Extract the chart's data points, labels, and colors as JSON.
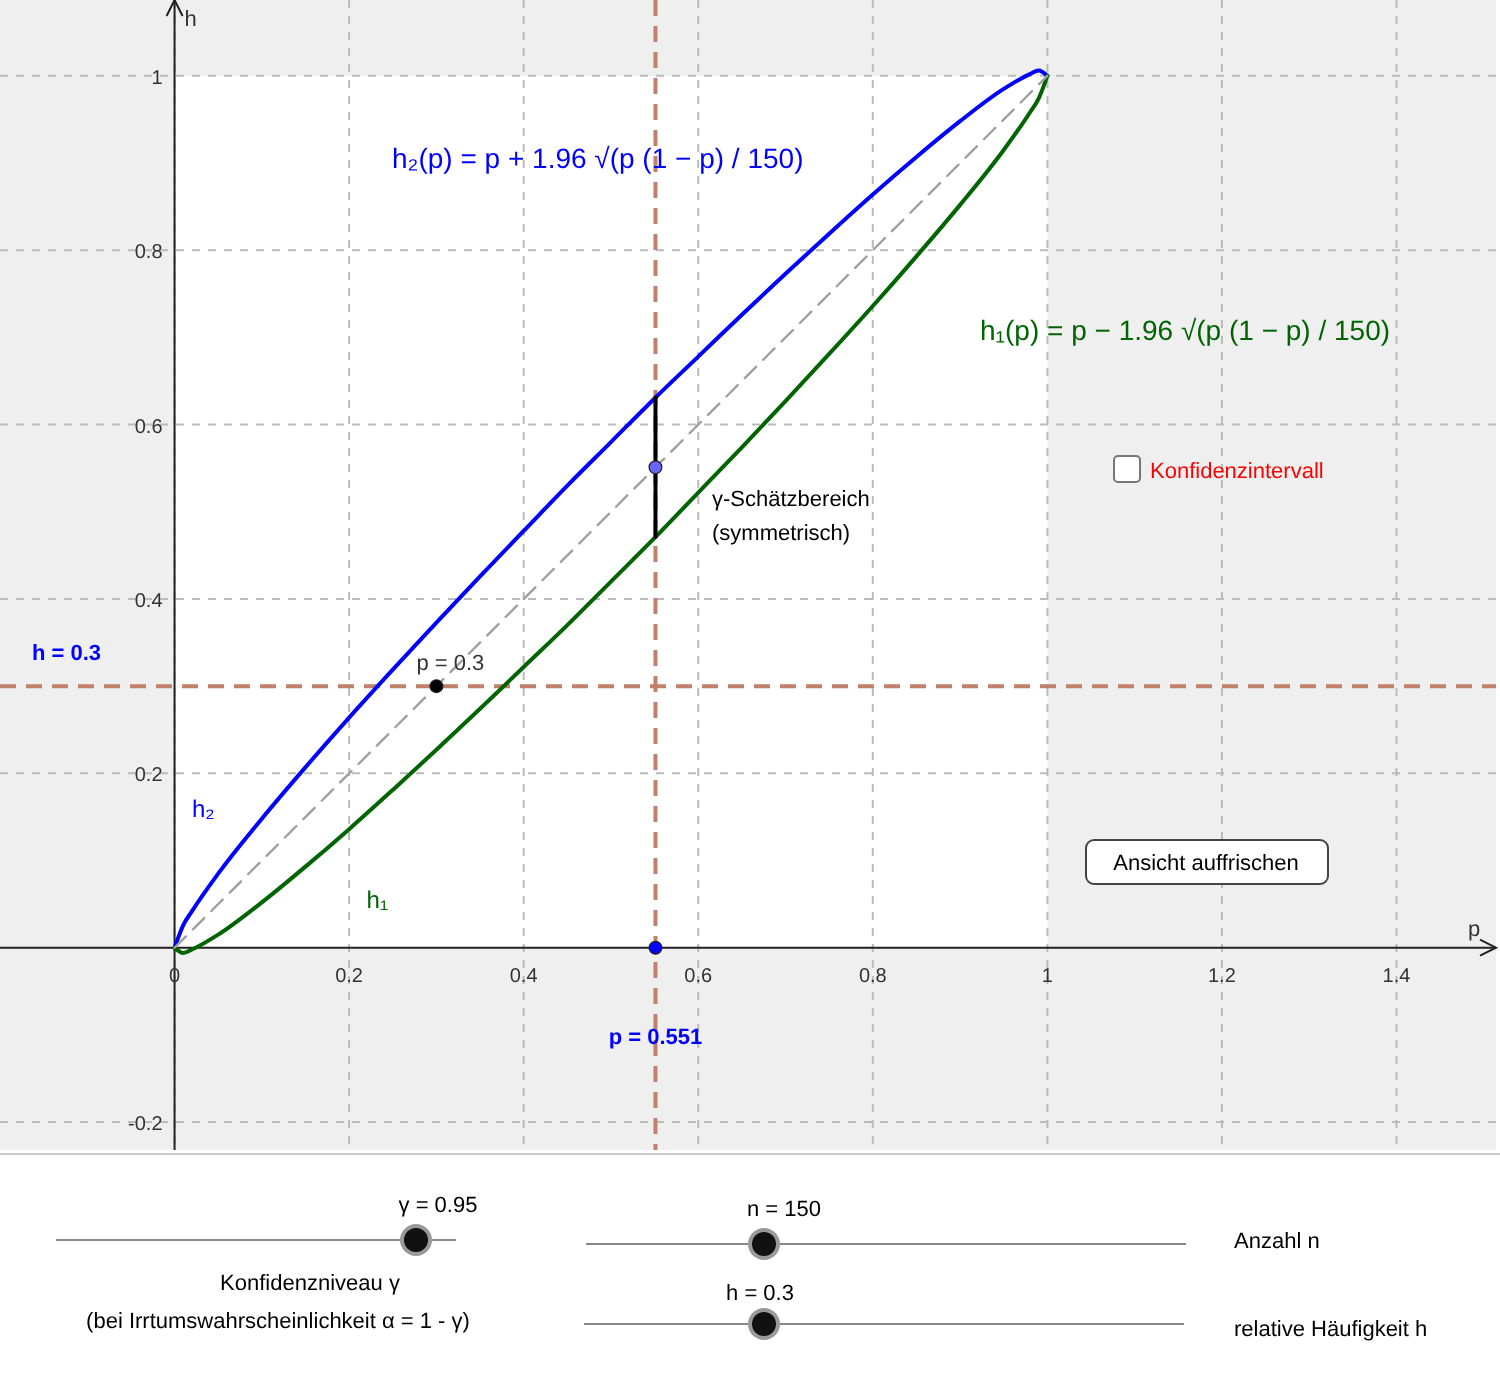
{
  "chart_data": {
    "type": "line",
    "xlabel": "p",
    "ylabel": "h",
    "xlim": [
      -0.2,
      1.514
    ],
    "ylim": [
      -0.232,
      1.087
    ],
    "xticks": [
      0,
      0.2,
      0.4,
      0.6,
      0.8,
      1,
      1.2,
      1.4
    ],
    "yticks": [
      -0.2,
      0.2,
      0.4,
      0.6,
      0.8,
      1
    ],
    "grid": true,
    "series": [
      {
        "name": "h₂",
        "color": "#0000ff",
        "x": [
          0,
          0.01,
          0.02,
          0.05,
          0.1,
          0.15,
          0.2,
          0.25,
          0.3,
          0.35,
          0.4,
          0.45,
          0.5,
          0.55,
          0.6,
          0.65,
          0.7,
          0.75,
          0.8,
          0.85,
          0.9,
          0.95,
          0.98,
          0.99,
          1
        ],
        "values": [
          0,
          0.026,
          0.042,
          0.085,
          0.148,
          0.207,
          0.264,
          0.319,
          0.373,
          0.426,
          0.478,
          0.53,
          0.58,
          0.63,
          0.678,
          0.726,
          0.773,
          0.819,
          0.864,
          0.907,
          0.948,
          0.985,
          1.002,
          1.006,
          1
        ]
      },
      {
        "name": "h₁",
        "color": "#006400",
        "x": [
          0,
          0.01,
          0.02,
          0.05,
          0.1,
          0.15,
          0.2,
          0.25,
          0.3,
          0.35,
          0.4,
          0.45,
          0.5,
          0.55,
          0.6,
          0.65,
          0.7,
          0.75,
          0.8,
          0.85,
          0.9,
          0.95,
          0.98,
          0.99,
          1
        ],
        "values": [
          0,
          -0.006,
          -0.002,
          0.015,
          0.052,
          0.093,
          0.136,
          0.181,
          0.227,
          0.274,
          0.322,
          0.37,
          0.42,
          0.47,
          0.522,
          0.574,
          0.627,
          0.681,
          0.736,
          0.793,
          0.852,
          0.915,
          0.958,
          0.974,
          1
        ]
      },
      {
        "color": "#a0a0a0",
        "line_style": "dashed",
        "x": [
          0,
          1
        ],
        "values": [
          0,
          1
        ]
      },
      {
        "color": "#000000",
        "x": [
          0.551,
          0.551
        ],
        "values": [
          0.471,
          0.631
        ]
      },
      {
        "type": "scatter",
        "color": "#000000",
        "x": [
          0.3
        ],
        "values": [
          0.3
        ]
      },
      {
        "type": "scatter",
        "color": "#0000ff",
        "x": [
          0.551
        ],
        "values": [
          0
        ]
      },
      {
        "type": "scatter",
        "color": "#6666ff",
        "x": [
          0.551
        ],
        "values": [
          0.551
        ]
      }
    ],
    "ref_lines": [
      {
        "axis": "x",
        "value": 0.551,
        "label": "p = 0.551",
        "color": "#c0806a",
        "line_style": "dashed"
      },
      {
        "axis": "y",
        "value": 0.3,
        "label": "h = 0.3",
        "color": "#c0806a",
        "line_style": "dashed"
      }
    ],
    "annotations": [
      "h₂(p) = p + 1.96 √(p (1 − p) / 150)",
      "h₁(p) = p − 1.96 √(p (1 − p) / 150)",
      "γ-Schätzbereich",
      "(symmetrisch)",
      {
        "text": "p = 0.3",
        "x": 0.3,
        "y": 0.3
      },
      "Konfidenzintervall",
      "Ansicht auffrischen",
      "γ = 0.95",
      "Konfidenzniveau γ",
      "(bei Irrtumswahrscheinlichkeit α = 1 - γ)",
      "n = 150",
      "Anzahl n",
      "h = 0.3",
      "relative Häufigkeit h"
    ]
  }
}
